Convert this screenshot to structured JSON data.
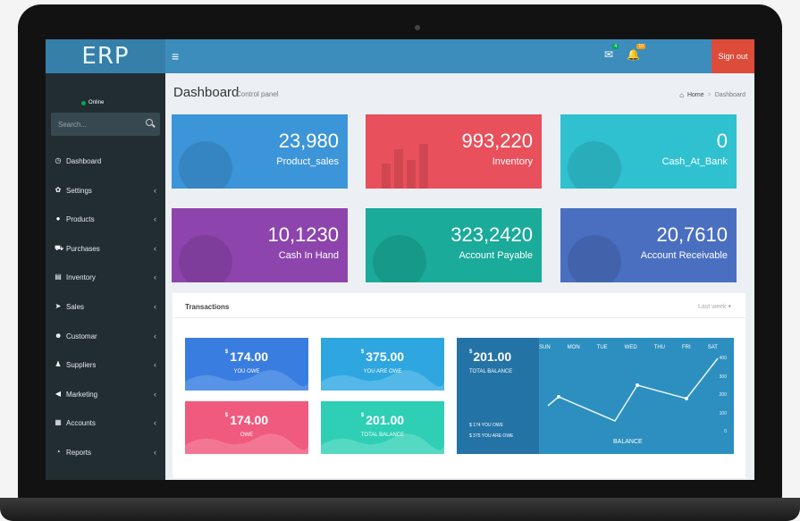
{
  "app": {
    "logo": "ERP",
    "sign_out": "Sign out",
    "mail_badge": "4",
    "bell_badge": "10"
  },
  "sidebar": {
    "status": "Online",
    "search_placeholder": "Search...",
    "items": [
      {
        "label": "Dashboard",
        "icon": "dashboard-icon",
        "chevron": ""
      },
      {
        "label": "Settings",
        "icon": "gear-icon",
        "chevron": "‹"
      },
      {
        "label": "Products",
        "icon": "apple-icon",
        "chevron": "‹"
      },
      {
        "label": "Purchases",
        "icon": "cart-icon",
        "chevron": "‹"
      },
      {
        "label": "Inventory",
        "icon": "inventory-icon",
        "chevron": "‹"
      },
      {
        "label": "Sales",
        "icon": "rocket-icon",
        "chevron": "‹"
      },
      {
        "label": "Customar",
        "icon": "users-icon",
        "chevron": "‹"
      },
      {
        "label": "Suppliers",
        "icon": "user-icon",
        "chevron": "‹"
      },
      {
        "label": "Marketing",
        "icon": "bullhorn-icon",
        "chevron": "‹"
      },
      {
        "label": "Accounts",
        "icon": "calculator-icon",
        "chevron": "‹"
      },
      {
        "label": "Reports",
        "icon": "pie-icon",
        "chevron": "‹"
      }
    ]
  },
  "header": {
    "title": "Dashboard",
    "subtitle": "Control panel",
    "breadcrumb_home": "Home",
    "breadcrumb_sep": ">",
    "breadcrumb_current": "Dashboard"
  },
  "stats": [
    {
      "value": "23,980",
      "label": "Product_sales",
      "color": "#3c95d8"
    },
    {
      "value": "993,220",
      "label": "Inventory",
      "color": "#e8505b"
    },
    {
      "value": "0",
      "label": "Cash_At_Bank",
      "color": "#2fc1d0"
    },
    {
      "value": "10,1230",
      "label": "Cash In Hand",
      "color": "#8e44ad"
    },
    {
      "value": "323,2420",
      "label": "Account Payable",
      "color": "#1aab9a"
    },
    {
      "value": "20,7610",
      "label": "Account Receivable",
      "color": "#4a6fc0"
    }
  ],
  "transactions": {
    "title": "Transactions",
    "filter": "Last week ▾",
    "tiles": [
      {
        "currency": "$",
        "amount": "174.00",
        "label": "YOU OWE",
        "color": "#3a7de0",
        "wave": "#6aa1ea"
      },
      {
        "currency": "$",
        "amount": "375.00",
        "label": "YOU ARE OWE",
        "color": "#2ea6df",
        "wave": "#6cc3ec"
      },
      {
        "currency": "$",
        "amount": "174.00",
        "label": "OWE",
        "color": "#f05a7e",
        "wave": "#f58aa3"
      },
      {
        "currency": "$",
        "amount": "201.00",
        "label": "TOTAL BALANCE",
        "color": "#2ecfb5",
        "wave": "#6fe0cd"
      }
    ],
    "balance": {
      "currency": "$",
      "amount": "201.00",
      "label": "TOTAL BALANCE",
      "owe_lines": [
        "$ 174   YOU OWE",
        "$ 375   YOU ARE OWE"
      ],
      "caption": "BALANCE",
      "days": [
        "SUN",
        "MON",
        "TUE",
        "WED",
        "THU",
        "FRI",
        "SAT"
      ],
      "axis": [
        "400",
        "300",
        "200",
        "100",
        "0"
      ]
    }
  }
}
